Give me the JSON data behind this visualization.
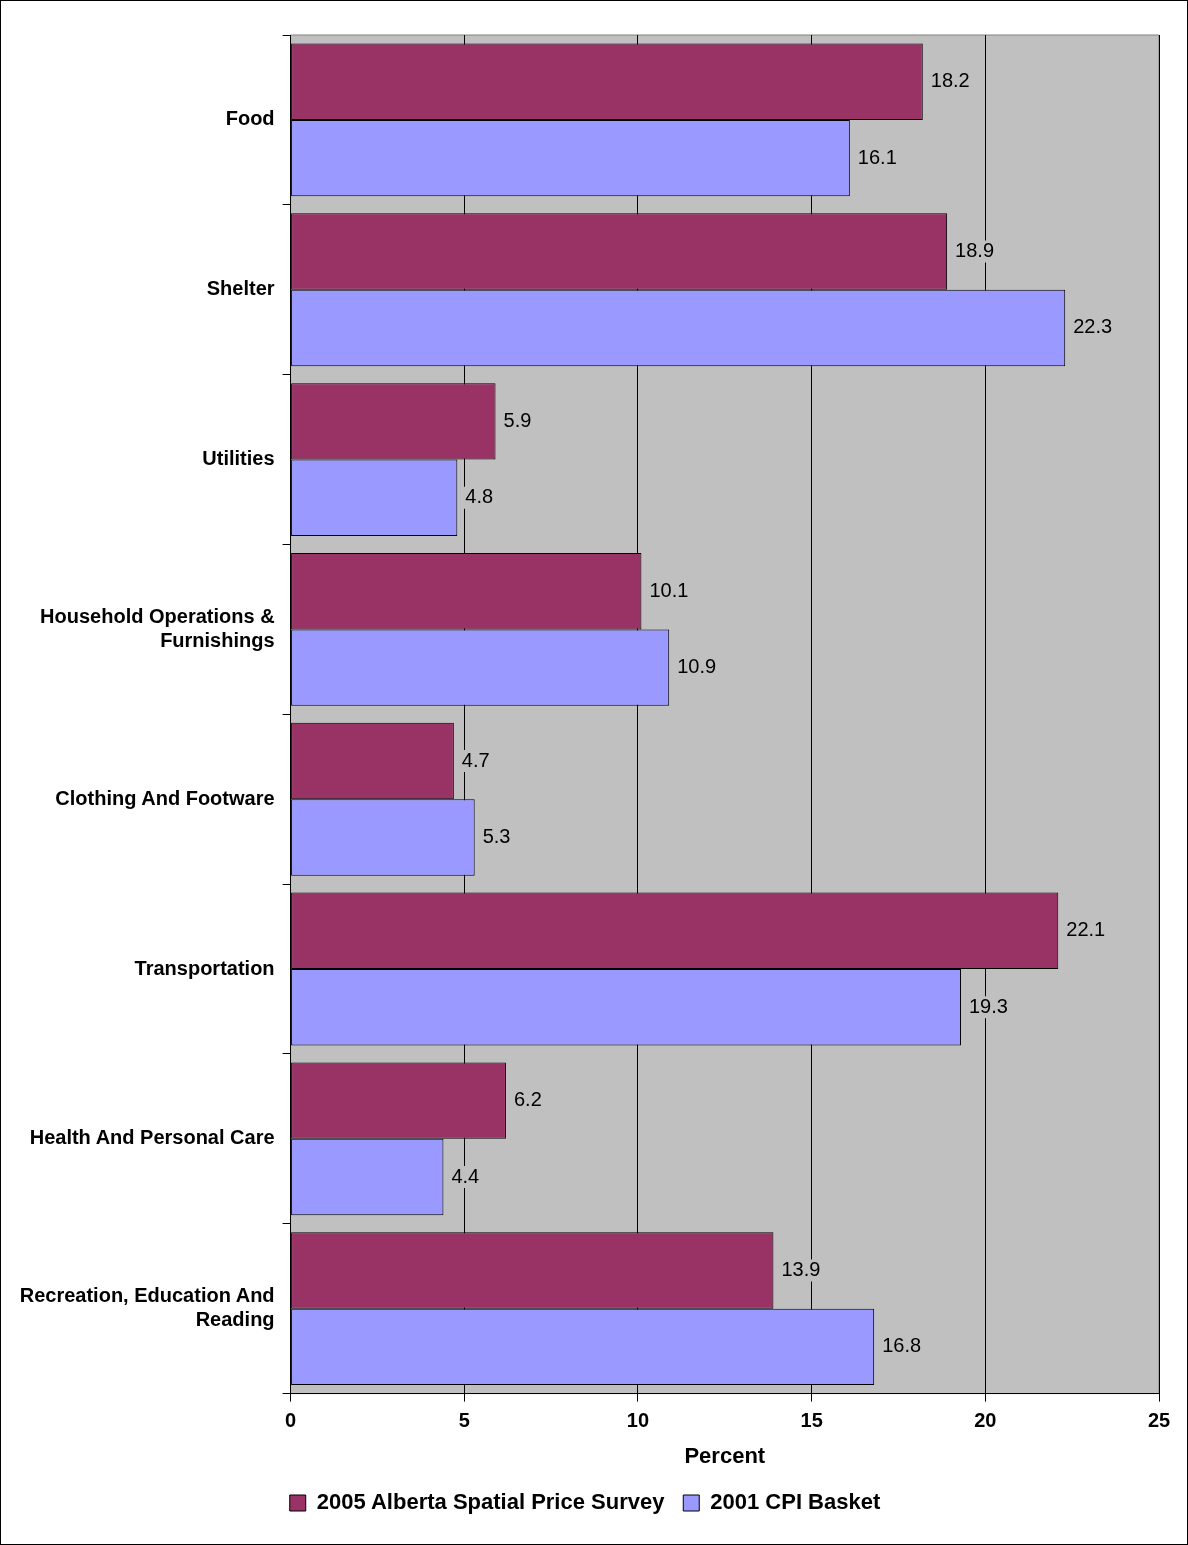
{
  "chart_data": {
    "type": "bar",
    "orientation": "horizontal",
    "xlabel": "Percent",
    "categories": [
      "Food",
      "Shelter",
      "Utilities",
      "Household Operations & Furnishings",
      "Clothing And Footware",
      "Transportation",
      "Health And Personal Care",
      "Recreation, Education And Reading"
    ],
    "series": [
      {
        "name": "2005 Alberta Spatial Price Survey",
        "color": "#993366",
        "values": [
          18.2,
          18.9,
          5.9,
          10.1,
          4.7,
          22.1,
          6.2,
          13.9
        ]
      },
      {
        "name": "2001 CPI Basket",
        "color": "#9999ff",
        "values": [
          16.1,
          22.3,
          4.8,
          10.9,
          5.3,
          19.3,
          4.4,
          16.8
        ]
      }
    ],
    "xlim": [
      0,
      25
    ],
    "xticks": [
      0,
      5,
      10,
      15,
      20,
      25
    ],
    "grid": "x",
    "legend": "bottom",
    "data_labels": true
  }
}
